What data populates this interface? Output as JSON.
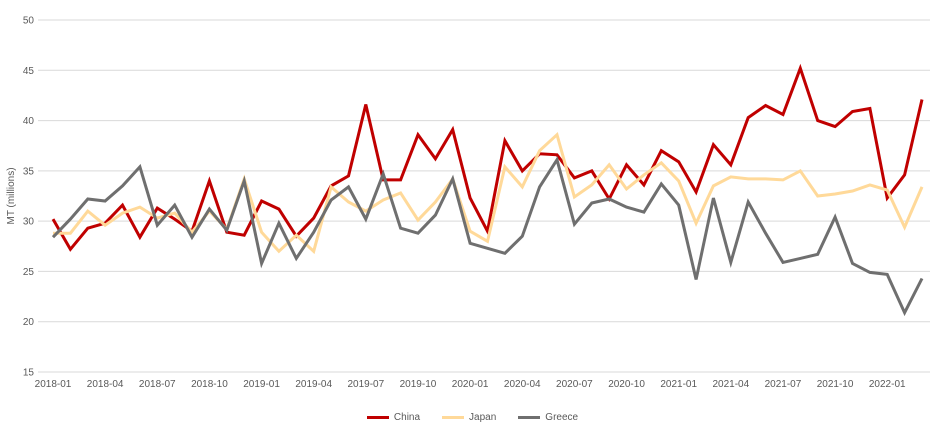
{
  "chart_data": {
    "type": "line",
    "title": "",
    "xlabel": "",
    "ylabel": "MT (millions)",
    "ylim": [
      15,
      50
    ],
    "yticks": [
      15,
      20,
      25,
      30,
      35,
      40,
      45,
      50
    ],
    "grid": true,
    "legend": "bottom",
    "x_start": "2018-01",
    "x_tick_labels": [
      "2018-01",
      "2018-04",
      "2018-07",
      "2018-10",
      "2019-01",
      "2019-04",
      "2019-07",
      "2019-10",
      "2020-01",
      "2020-04",
      "2020-07",
      "2020-10",
      "2021-01",
      "2021-04",
      "2021-07",
      "2021-10",
      "2022-01"
    ],
    "x": [
      "2018-01",
      "2018-02",
      "2018-03",
      "2018-04",
      "2018-05",
      "2018-06",
      "2018-07",
      "2018-08",
      "2018-09",
      "2018-10",
      "2018-11",
      "2018-12",
      "2019-01",
      "2019-02",
      "2019-03",
      "2019-04",
      "2019-05",
      "2019-06",
      "2019-07",
      "2019-08",
      "2019-09",
      "2019-10",
      "2019-11",
      "2019-12",
      "2020-01",
      "2020-02",
      "2020-03",
      "2020-04",
      "2020-05",
      "2020-06",
      "2020-07",
      "2020-08",
      "2020-09",
      "2020-10",
      "2020-11",
      "2020-12",
      "2021-01",
      "2021-02",
      "2021-03",
      "2021-04",
      "2021-05",
      "2021-06",
      "2021-07",
      "2021-08",
      "2021-09",
      "2021-10",
      "2021-11",
      "2021-12",
      "2022-01",
      "2022-02",
      "2022-03"
    ],
    "series": [
      {
        "name": "China",
        "color": "#c00000",
        "values": [
          30.2,
          27.2,
          29.3,
          29.8,
          31.6,
          28.4,
          31.3,
          30.2,
          29.0,
          34.0,
          28.9,
          28.6,
          32.0,
          31.2,
          28.5,
          30.3,
          33.5,
          34.5,
          41.6,
          34.1,
          34.1,
          38.6,
          36.2,
          39.1,
          32.3,
          29.0,
          38.0,
          35.0,
          36.7,
          36.6,
          34.3,
          35.0,
          32.2,
          35.6,
          33.6,
          37.0,
          35.9,
          32.9,
          37.6,
          35.6,
          40.3,
          41.5,
          40.6,
          45.2,
          40.0,
          39.4,
          40.9,
          41.2,
          32.3,
          34.6,
          42.1
        ]
      },
      {
        "name": "Japan",
        "color": "#ffd999",
        "values": [
          28.8,
          28.8,
          31.0,
          29.6,
          30.8,
          31.4,
          30.3,
          30.8,
          28.9,
          31.0,
          29.2,
          34.2,
          28.9,
          27.0,
          28.6,
          27.0,
          33.4,
          31.9,
          31.0,
          32.1,
          32.8,
          30.1,
          31.9,
          34.2,
          29.0,
          28.0,
          35.4,
          33.4,
          37.0,
          38.6,
          32.4,
          33.6,
          35.6,
          33.2,
          34.6,
          35.8,
          34.0,
          29.8,
          33.5,
          34.4,
          34.2,
          34.2,
          34.1,
          35.0,
          32.5,
          32.7,
          33.0,
          33.6,
          33.1,
          29.4,
          33.4
        ]
      },
      {
        "name": "Greece",
        "color": "#6f6f6f",
        "values": [
          28.4,
          30.2,
          32.2,
          32.0,
          33.5,
          35.4,
          29.6,
          31.6,
          28.4,
          31.2,
          29.1,
          34.0,
          25.8,
          29.8,
          26.3,
          28.9,
          32.1,
          33.4,
          30.2,
          34.7,
          29.3,
          28.8,
          30.6,
          34.2,
          27.8,
          27.3,
          26.8,
          28.5,
          33.4,
          36.1,
          29.7,
          31.8,
          32.2,
          31.4,
          30.9,
          33.7,
          31.6,
          24.2,
          32.3,
          25.9,
          31.9,
          28.8,
          25.9,
          26.3,
          26.7,
          30.4,
          25.8,
          24.9,
          24.7,
          20.9,
          24.3
        ]
      }
    ]
  }
}
